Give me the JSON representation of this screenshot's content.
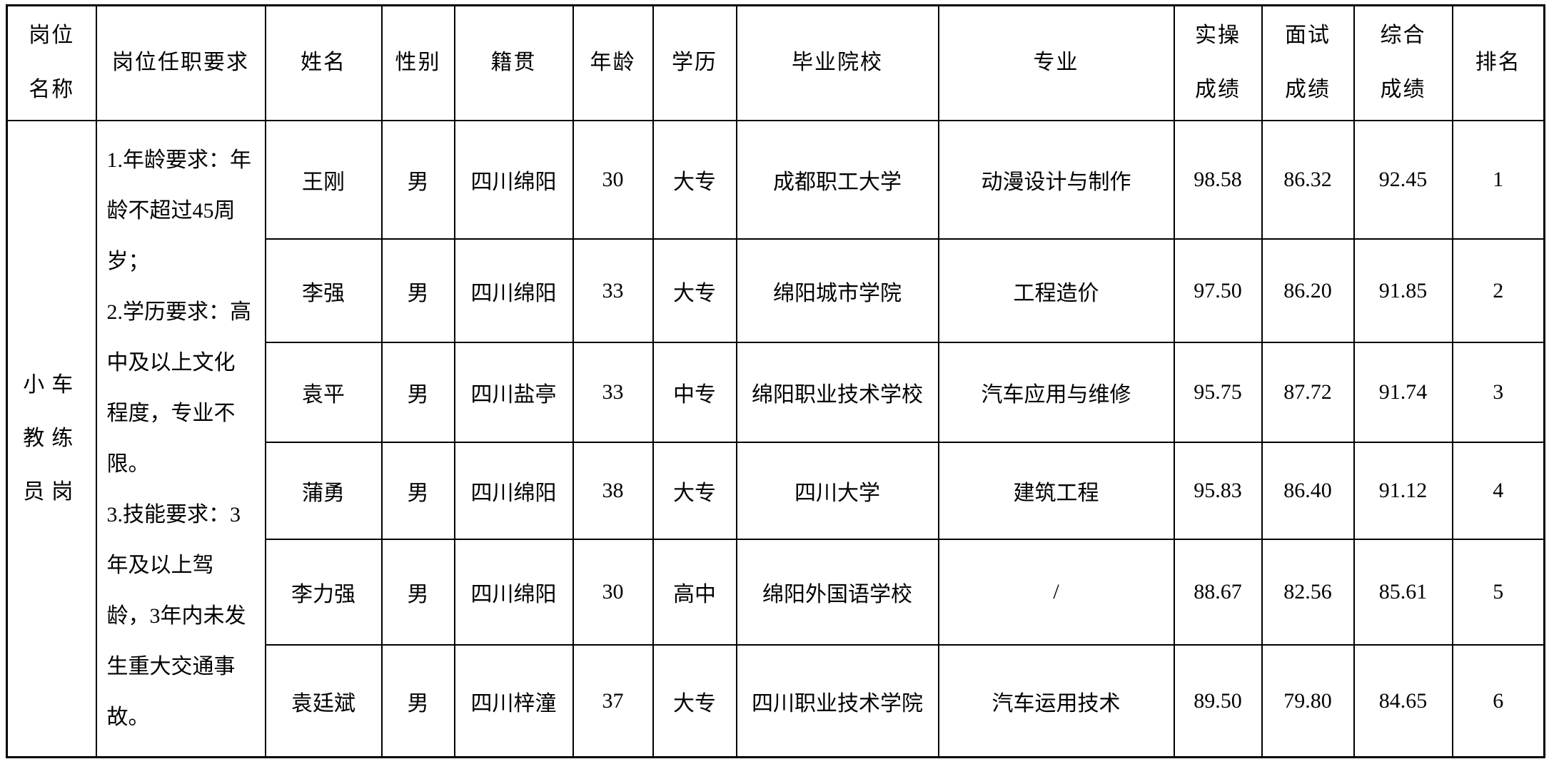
{
  "table": {
    "headers": {
      "position_name": {
        "l1": "岗位",
        "l2": "名称"
      },
      "requirements": "岗位任职要求",
      "name": "姓名",
      "gender": "性别",
      "origin": "籍贯",
      "age": "年龄",
      "education": "学历",
      "school": "毕业院校",
      "major": "专业",
      "practical": {
        "l1": "实操",
        "l2": "成绩"
      },
      "interview": {
        "l1": "面试",
        "l2": "成绩"
      },
      "comprehensive": {
        "l1": "综合",
        "l2": "成绩"
      },
      "rank": "排名"
    },
    "position": {
      "name": "小车教练员岗",
      "requirements": [
        "1.年龄要求：年龄不超过45周岁；",
        "2.学历要求：高中及以上文化程度，专业不限。",
        "3.技能要求：3年及以上驾龄，3年内未发生重大交通事故。"
      ]
    },
    "rows": [
      {
        "name": "王刚",
        "gender": "男",
        "origin": "四川绵阳",
        "age": "30",
        "education": "大专",
        "school": "成都职工大学",
        "major": "动漫设计与制作",
        "practical": "98.58",
        "interview": "86.32",
        "comprehensive": "92.45",
        "rank": "1"
      },
      {
        "name": "李强",
        "gender": "男",
        "origin": "四川绵阳",
        "age": "33",
        "education": "大专",
        "school": "绵阳城市学院",
        "major": "工程造价",
        "practical": "97.50",
        "interview": "86.20",
        "comprehensive": "91.85",
        "rank": "2"
      },
      {
        "name": "袁平",
        "gender": "男",
        "origin": "四川盐亭",
        "age": "33",
        "education": "中专",
        "school": "绵阳职业技术学校",
        "major": "汽车应用与维修",
        "practical": "95.75",
        "interview": "87.72",
        "comprehensive": "91.74",
        "rank": "3"
      },
      {
        "name": "蒲勇",
        "gender": "男",
        "origin": "四川绵阳",
        "age": "38",
        "education": "大专",
        "school": "四川大学",
        "major": "建筑工程",
        "practical": "95.83",
        "interview": "86.40",
        "comprehensive": "91.12",
        "rank": "4"
      },
      {
        "name": "李力强",
        "gender": "男",
        "origin": "四川绵阳",
        "age": "30",
        "education": "高中",
        "school": "绵阳外国语学校",
        "major": "/",
        "practical": "88.67",
        "interview": "82.56",
        "comprehensive": "85.61",
        "rank": "5"
      },
      {
        "name": "袁廷斌",
        "gender": "男",
        "origin": "四川梓潼",
        "age": "37",
        "education": "大专",
        "school": "四川职业技术学院",
        "major": "汽车运用技术",
        "practical": "89.50",
        "interview": "79.80",
        "comprehensive": "84.65",
        "rank": "6"
      }
    ]
  }
}
